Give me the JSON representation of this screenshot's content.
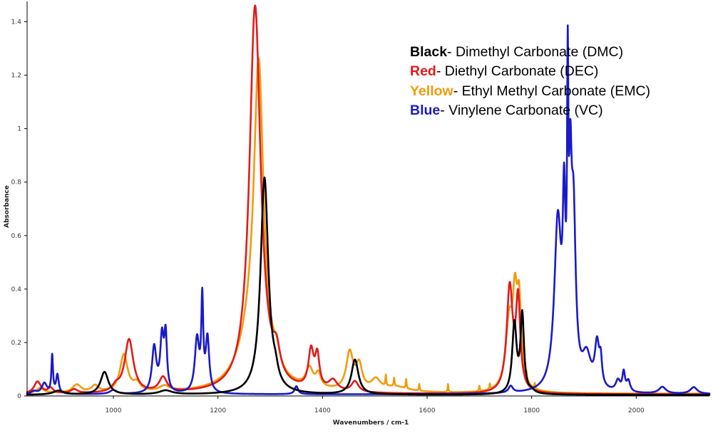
{
  "chart_data": {
    "type": "line",
    "xlabel": "Wavenumbers / cm-1",
    "ylabel": "Absorbance",
    "xlim": [
      835,
      2140
    ],
    "ylim": [
      0,
      1.46
    ],
    "x_ticks": [
      1000,
      1200,
      1400,
      1600,
      1800,
      2000
    ],
    "y_ticks": [
      "0",
      "0.2",
      "0.4",
      "0.6",
      "0.8",
      "1",
      "1.2",
      "1.4"
    ],
    "y_tick_values": [
      0,
      0.2,
      0.4,
      0.6,
      0.8,
      1.0,
      1.2,
      1.4
    ],
    "grid": false,
    "legend_position": "top-right",
    "legend": [
      {
        "key": "Black",
        "text": "- Dimethyl Carbonate (DMC)",
        "color": "#000000"
      },
      {
        "key": "Red",
        "text": "- Diethyl Carbonate (DEC)",
        "color": "#e01b1b"
      },
      {
        "key": "Yellow",
        "text": "- Ethyl Methyl Carbonate (EMC)",
        "color": "#f29b0c"
      },
      {
        "key": "Blue",
        "text": "- Vinylene Carbonate (VC)",
        "color": "#1a1ac8"
      }
    ],
    "series": [
      {
        "color": "#f29b0c",
        "baseline": 0.008,
        "peaks": [
          [
            860,
            0.02,
            8
          ],
          [
            930,
            0.03,
            10
          ],
          [
            965,
            0.025,
            8
          ],
          [
            1020,
            0.14,
            9
          ],
          [
            1045,
            0.03,
            8
          ],
          [
            1098,
            0.02,
            12
          ],
          [
            1265,
            0.18,
            30
          ],
          [
            1278,
            1.1,
            11
          ],
          [
            1312,
            0.06,
            7
          ],
          [
            1375,
            0.07,
            8
          ],
          [
            1392,
            0.05,
            6
          ],
          [
            1452,
            0.14,
            8
          ],
          [
            1470,
            0.09,
            7
          ],
          [
            1502,
            0.04,
            10
          ],
          [
            1540,
            0.02,
            30
          ],
          [
            1757,
            0.25,
            8
          ],
          [
            1768,
            0.28,
            5
          ],
          [
            1776,
            0.3,
            5
          ]
        ],
        "noise": [
          [
            1640,
            0.03
          ],
          [
            1521,
            0.04
          ],
          [
            1537,
            0.03
          ],
          [
            1560,
            0.035
          ],
          [
            1585,
            0.025
          ],
          [
            1720,
            0.02
          ],
          [
            1790,
            0.025
          ],
          [
            1806,
            0.02
          ],
          [
            1700,
            0.02
          ]
        ]
      },
      {
        "color": "#e01b1b",
        "baseline": 0.006,
        "peaks": [
          [
            855,
            0.045,
            8
          ],
          [
            880,
            0.02,
            6
          ],
          [
            925,
            0.015,
            8
          ],
          [
            1005,
            0.02,
            8
          ],
          [
            1030,
            0.2,
            10
          ],
          [
            1095,
            0.055,
            9
          ],
          [
            1271,
            1.45,
            13
          ],
          [
            1312,
            0.09,
            8
          ],
          [
            1378,
            0.14,
            6
          ],
          [
            1390,
            0.12,
            5
          ],
          [
            1420,
            0.04,
            10
          ],
          [
            1462,
            0.04,
            8
          ],
          [
            1758,
            0.39,
            7
          ],
          [
            1774,
            0.33,
            5
          ]
        ],
        "noise": []
      },
      {
        "color": "#1a1ac8",
        "baseline": 0.006,
        "peaks": [
          [
            848,
            0.01,
            6
          ],
          [
            868,
            0.04,
            6
          ],
          [
            883,
            0.14,
            1.8
          ],
          [
            893,
            0.07,
            3
          ],
          [
            1000,
            0.015,
            8
          ],
          [
            1078,
            0.17,
            5
          ],
          [
            1093,
            0.2,
            4
          ],
          [
            1100,
            0.2,
            3
          ],
          [
            1160,
            0.2,
            5
          ],
          [
            1170,
            0.33,
            2.2
          ],
          [
            1180,
            0.2,
            4
          ],
          [
            1350,
            0.03,
            4
          ],
          [
            1760,
            0.025,
            5
          ],
          [
            1850,
            0.62,
            8
          ],
          [
            1862,
            0.55,
            3
          ],
          [
            1869,
            0.93,
            1.5
          ],
          [
            1874,
            0.6,
            3
          ],
          [
            1880,
            0.6,
            5
          ],
          [
            1905,
            0.12,
            10
          ],
          [
            1925,
            0.16,
            5
          ],
          [
            1932,
            0.09,
            3
          ],
          [
            1965,
            0.04,
            5
          ],
          [
            1976,
            0.07,
            3
          ],
          [
            1985,
            0.04,
            4
          ],
          [
            2050,
            0.025,
            8
          ],
          [
            2110,
            0.025,
            8
          ]
        ],
        "noise": []
      },
      {
        "color": "#000000",
        "baseline": 0.004,
        "peaks": [
          [
            895,
            0.015,
            12
          ],
          [
            983,
            0.085,
            9
          ],
          [
            1100,
            0.015,
            15
          ],
          [
            1289,
            0.81,
            9
          ],
          [
            1310,
            0.04,
            6
          ],
          [
            1462,
            0.13,
            8
          ],
          [
            1767,
            0.26,
            5
          ],
          [
            1782,
            0.29,
            4
          ],
          [
            1800,
            0.01,
            6
          ]
        ],
        "noise": []
      }
    ]
  }
}
